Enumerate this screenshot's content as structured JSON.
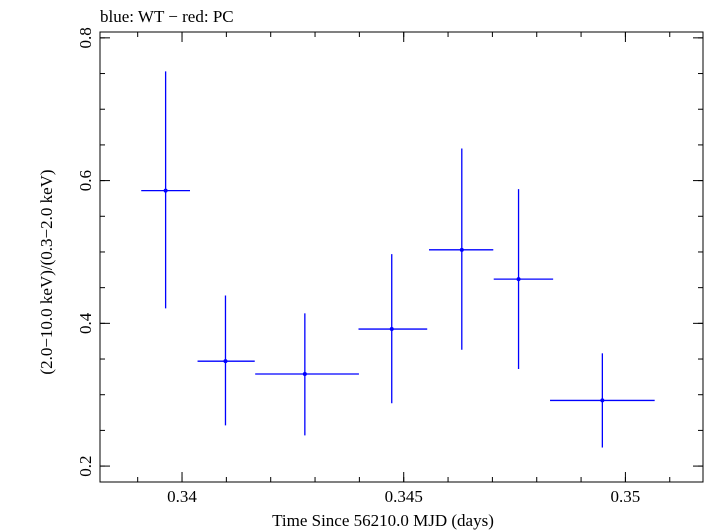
{
  "chart_data": {
    "type": "scatter",
    "title": "blue: WT − red: PC",
    "xlabel": "Time Since 56210.0 MJD (days)",
    "ylabel": "(2.0−10.0 keV)/(0.3−2.0 keV)",
    "xlim": [
      0.33815,
      0.35175
    ],
    "ylim": [
      0.1777,
      0.8082
    ],
    "x_ticks": [
      {
        "value": 0.34,
        "label": "0.34"
      },
      {
        "value": 0.345,
        "label": "0.345"
      },
      {
        "value": 0.35,
        "label": "0.35"
      }
    ],
    "x_minor_step": 0.001,
    "y_ticks": [
      {
        "value": 0.2,
        "label": "0.2"
      },
      {
        "value": 0.4,
        "label": "0.4"
      },
      {
        "value": 0.6,
        "label": "0.6"
      },
      {
        "value": 0.8,
        "label": "0.8"
      }
    ],
    "y_minor_step": 0.05,
    "series": [
      {
        "name": "WT",
        "color": "#0000ff",
        "points": [
          {
            "x": 0.33963,
            "xlo": 0.33908,
            "xhi": 0.34018,
            "y": 0.586,
            "ylo": 0.421,
            "yhi": 0.753
          },
          {
            "x": 0.34098,
            "xlo": 0.34035,
            "xhi": 0.34164,
            "y": 0.347,
            "ylo": 0.257,
            "yhi": 0.439
          },
          {
            "x": 0.34277,
            "xlo": 0.34165,
            "xhi": 0.34399,
            "y": 0.329,
            "ylo": 0.243,
            "yhi": 0.414
          },
          {
            "x": 0.34473,
            "xlo": 0.34398,
            "xhi": 0.34553,
            "y": 0.392,
            "ylo": 0.288,
            "yhi": 0.497
          },
          {
            "x": 0.34631,
            "xlo": 0.34557,
            "xhi": 0.34702,
            "y": 0.503,
            "ylo": 0.363,
            "yhi": 0.645
          },
          {
            "x": 0.34759,
            "xlo": 0.34703,
            "xhi": 0.34837,
            "y": 0.462,
            "ylo": 0.336,
            "yhi": 0.588
          },
          {
            "x": 0.34948,
            "xlo": 0.3483,
            "xhi": 0.35066,
            "y": 0.292,
            "ylo": 0.226,
            "yhi": 0.358
          }
        ]
      }
    ]
  }
}
